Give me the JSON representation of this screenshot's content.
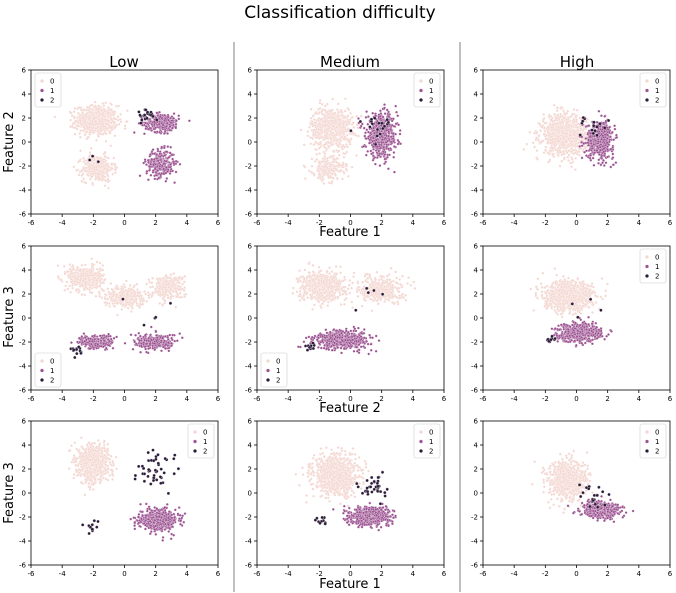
{
  "title": "Classification difficulty",
  "column_titles": [
    "Low",
    "Medium",
    "High"
  ],
  "row_labels": [
    "Feature 2",
    "Feature 3",
    "Feature 3"
  ],
  "x_labels": {
    "row0_col1": "Feature 1",
    "row1_col1": "Feature 2",
    "row2_col1": "Feature 1"
  },
  "colors": {
    "class0": "#f3d6d0",
    "class1": "#9a4f8f",
    "class2": "#2a1a37"
  },
  "chart_data": [
    {
      "type": "scatter",
      "panel": "row0-low",
      "xlim": [
        -6,
        6
      ],
      "ylim": [
        -6,
        6
      ],
      "ticks": [
        -6,
        -4,
        -2,
        0,
        2,
        4,
        6
      ],
      "legend": [
        "0",
        "1",
        "2"
      ],
      "legend_position": "top-left",
      "series": [
        {
          "name": "0",
          "clusters": [
            {
              "cx": -1.8,
              "cy": 1.8,
              "sx": 1.2,
              "sy": 1.1,
              "n": 650
            },
            {
              "cx": -1.7,
              "cy": -2.2,
              "sx": 0.9,
              "sy": 1.0,
              "n": 350
            }
          ]
        },
        {
          "name": "1",
          "clusters": [
            {
              "cx": 2.4,
              "cy": 1.6,
              "sx": 1.0,
              "sy": 0.7,
              "n": 280
            },
            {
              "cx": 2.3,
              "cy": -1.8,
              "sx": 0.8,
              "sy": 1.0,
              "n": 300
            }
          ]
        },
        {
          "name": "2",
          "clusters": [
            {
              "cx": 1.5,
              "cy": 2.3,
              "sx": 0.7,
              "sy": 0.5,
              "n": 20
            },
            {
              "cx": -2.0,
              "cy": -1.5,
              "sx": 0.4,
              "sy": 0.6,
              "n": 3
            }
          ]
        }
      ]
    },
    {
      "type": "scatter",
      "panel": "row0-medium",
      "xlim": [
        -6,
        6
      ],
      "ylim": [
        -6,
        6
      ],
      "ticks": [
        -6,
        -4,
        -2,
        0,
        2,
        4,
        6
      ],
      "legend": [
        "0",
        "1",
        "2"
      ],
      "legend_position": "top-right",
      "series": [
        {
          "name": "0",
          "clusters": [
            {
              "cx": -1.2,
              "cy": 1.2,
              "sx": 1.2,
              "sy": 1.5,
              "n": 700
            },
            {
              "cx": -1.4,
              "cy": -2.2,
              "sx": 0.9,
              "sy": 0.9,
              "n": 250
            }
          ]
        },
        {
          "name": "1",
          "clusters": [
            {
              "cx": 2.0,
              "cy": 0.5,
              "sx": 0.9,
              "sy": 1.6,
              "n": 550
            }
          ]
        },
        {
          "name": "2",
          "clusters": [
            {
              "cx": 1.5,
              "cy": 1.5,
              "sx": 1.0,
              "sy": 0.9,
              "n": 18
            }
          ]
        }
      ]
    },
    {
      "type": "scatter",
      "panel": "row0-high",
      "xlim": [
        -6,
        6
      ],
      "ylim": [
        -6,
        6
      ],
      "ticks": [
        -6,
        -4,
        -2,
        0,
        2,
        4,
        6
      ],
      "legend": [
        "0",
        "1",
        "2"
      ],
      "legend_position": "top-right",
      "series": [
        {
          "name": "0",
          "clusters": [
            {
              "cx": -0.8,
              "cy": 0.6,
              "sx": 1.3,
              "sy": 1.5,
              "n": 900
            }
          ]
        },
        {
          "name": "1",
          "clusters": [
            {
              "cx": 1.5,
              "cy": 0.2,
              "sx": 0.8,
              "sy": 1.4,
              "n": 500
            }
          ]
        },
        {
          "name": "2",
          "clusters": [
            {
              "cx": 1.0,
              "cy": 1.3,
              "sx": 0.9,
              "sy": 0.9,
              "n": 15
            }
          ]
        }
      ]
    },
    {
      "type": "scatter",
      "panel": "row1-low",
      "xlim": [
        -6,
        6
      ],
      "ylim": [
        -6,
        6
      ],
      "ticks": [
        -6,
        -4,
        -2,
        0,
        2,
        4,
        6
      ],
      "legend": [
        "0",
        "1",
        "2"
      ],
      "legend_position": "bottom-left",
      "series": [
        {
          "name": "0",
          "clusters": [
            {
              "cx": -2.5,
              "cy": 3.3,
              "sx": 1.0,
              "sy": 0.9,
              "n": 500
            },
            {
              "cx": 0.0,
              "cy": 1.8,
              "sx": 1.2,
              "sy": 0.8,
              "n": 300
            },
            {
              "cx": 2.8,
              "cy": 2.6,
              "sx": 0.9,
              "sy": 0.9,
              "n": 300
            }
          ]
        },
        {
          "name": "1",
          "clusters": [
            {
              "cx": -1.8,
              "cy": -2.0,
              "sx": 1.0,
              "sy": 0.5,
              "n": 250
            },
            {
              "cx": 2.0,
              "cy": -2.0,
              "sx": 1.2,
              "sy": 0.6,
              "n": 280
            }
          ]
        },
        {
          "name": "2",
          "clusters": [
            {
              "cx": -3.0,
              "cy": -2.8,
              "sx": 0.4,
              "sy": 0.4,
              "n": 15
            },
            {
              "cx": 1.5,
              "cy": 0.5,
              "sx": 2.0,
              "sy": 1.5,
              "n": 5
            }
          ]
        }
      ]
    },
    {
      "type": "scatter",
      "panel": "row1-medium",
      "xlim": [
        -6,
        6
      ],
      "ylim": [
        -6,
        6
      ],
      "ticks": [
        -6,
        -4,
        -2,
        0,
        2,
        4,
        6
      ],
      "legend": [
        "0",
        "1",
        "2"
      ],
      "legend_position": "bottom-left",
      "series": [
        {
          "name": "0",
          "clusters": [
            {
              "cx": -1.8,
              "cy": 2.6,
              "sx": 1.3,
              "sy": 1.1,
              "n": 600
            },
            {
              "cx": 2.0,
              "cy": 2.4,
              "sx": 1.2,
              "sy": 1.0,
              "n": 350
            }
          ]
        },
        {
          "name": "1",
          "clusters": [
            {
              "cx": -0.5,
              "cy": -1.8,
              "sx": 1.6,
              "sy": 0.7,
              "n": 500
            }
          ]
        },
        {
          "name": "2",
          "clusters": [
            {
              "cx": -2.5,
              "cy": -2.4,
              "sx": 0.4,
              "sy": 0.4,
              "n": 12
            },
            {
              "cx": 1.5,
              "cy": 1.0,
              "sx": 2.0,
              "sy": 1.5,
              "n": 5
            }
          ]
        }
      ]
    },
    {
      "type": "scatter",
      "panel": "row1-high",
      "xlim": [
        -6,
        6
      ],
      "ylim": [
        -6,
        6
      ],
      "ticks": [
        -6,
        -4,
        -2,
        0,
        2,
        4,
        6
      ],
      "legend": [
        "0",
        "1",
        "2"
      ],
      "legend_position": "top-right",
      "series": [
        {
          "name": "0",
          "clusters": [
            {
              "cx": -0.5,
              "cy": 1.8,
              "sx": 1.4,
              "sy": 1.1,
              "n": 900
            }
          ]
        },
        {
          "name": "1",
          "clusters": [
            {
              "cx": 0.2,
              "cy": -1.2,
              "sx": 1.3,
              "sy": 0.7,
              "n": 500
            }
          ]
        },
        {
          "name": "2",
          "clusters": [
            {
              "cx": -1.8,
              "cy": -1.8,
              "sx": 0.4,
              "sy": 0.3,
              "n": 10
            },
            {
              "cx": 1.0,
              "cy": 0.8,
              "sx": 1.5,
              "sy": 1.2,
              "n": 4
            }
          ]
        }
      ]
    },
    {
      "type": "scatter",
      "panel": "row2-low",
      "xlim": [
        -6,
        6
      ],
      "ylim": [
        -6,
        6
      ],
      "ticks": [
        -6,
        -4,
        -2,
        0,
        2,
        4,
        6
      ],
      "legend": [
        "0",
        "1",
        "2"
      ],
      "legend_position": "top-right",
      "series": [
        {
          "name": "0",
          "clusters": [
            {
              "cx": -2.0,
              "cy": 2.5,
              "sx": 0.9,
              "sy": 1.3,
              "n": 800
            }
          ]
        },
        {
          "name": "1",
          "clusters": [
            {
              "cx": 2.2,
              "cy": -2.2,
              "sx": 1.1,
              "sy": 0.8,
              "n": 550
            }
          ]
        },
        {
          "name": "2",
          "clusters": [
            {
              "cx": 1.9,
              "cy": 1.6,
              "sx": 1.0,
              "sy": 1.2,
              "n": 45
            },
            {
              "cx": -2.2,
              "cy": -2.8,
              "sx": 0.4,
              "sy": 0.5,
              "n": 12
            }
          ]
        }
      ]
    },
    {
      "type": "scatter",
      "panel": "row2-medium",
      "xlim": [
        -6,
        6
      ],
      "ylim": [
        -6,
        6
      ],
      "ticks": [
        -6,
        -4,
        -2,
        0,
        2,
        4,
        6
      ],
      "legend": [
        "0",
        "1",
        "2"
      ],
      "legend_position": "top-right",
      "series": [
        {
          "name": "0",
          "clusters": [
            {
              "cx": -1.0,
              "cy": 1.5,
              "sx": 1.3,
              "sy": 1.5,
              "n": 900
            }
          ]
        },
        {
          "name": "1",
          "clusters": [
            {
              "cx": 1.3,
              "cy": -1.9,
              "sx": 1.2,
              "sy": 0.7,
              "n": 550
            }
          ]
        },
        {
          "name": "2",
          "clusters": [
            {
              "cx": 1.5,
              "cy": 0.5,
              "sx": 0.9,
              "sy": 1.0,
              "n": 35
            },
            {
              "cx": -2.0,
              "cy": -2.3,
              "sx": 0.5,
              "sy": 0.4,
              "n": 10
            }
          ]
        }
      ]
    },
    {
      "type": "scatter",
      "panel": "row2-high",
      "xlim": [
        -6,
        6
      ],
      "ylim": [
        -6,
        6
      ],
      "ticks": [
        -6,
        -4,
        -2,
        0,
        2,
        4,
        6
      ],
      "legend": [
        "0",
        "1",
        "2"
      ],
      "legend_position": "top-right",
      "series": [
        {
          "name": "0",
          "clusters": [
            {
              "cx": -0.6,
              "cy": 1.0,
              "sx": 1.1,
              "sy": 1.4,
              "n": 850
            }
          ]
        },
        {
          "name": "1",
          "clusters": [
            {
              "cx": 1.6,
              "cy": -1.4,
              "sx": 1.1,
              "sy": 0.6,
              "n": 500
            }
          ]
        },
        {
          "name": "2",
          "clusters": [
            {
              "cx": 1.0,
              "cy": -0.3,
              "sx": 0.9,
              "sy": 0.9,
              "n": 20
            }
          ]
        }
      ]
    }
  ]
}
